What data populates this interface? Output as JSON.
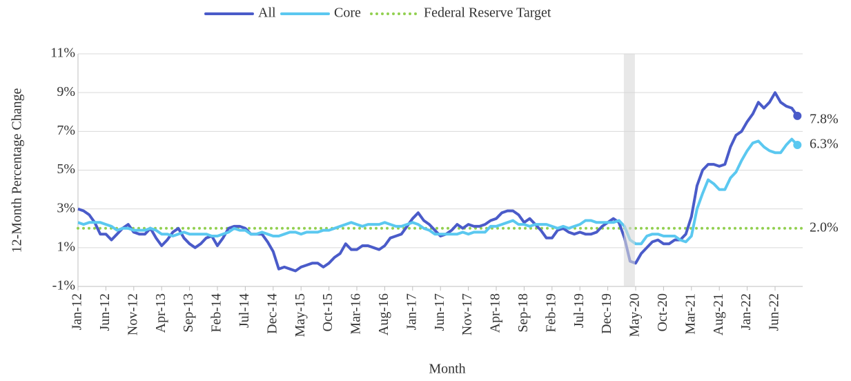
{
  "chart_data": {
    "type": "line",
    "x_label": "Month",
    "y_label": "12-Month Percentage Change",
    "categories": [
      "Jan-12",
      null,
      null,
      null,
      null,
      "Jun-12",
      null,
      null,
      null,
      null,
      "Nov-12",
      null,
      null,
      null,
      null,
      "Apr-13",
      null,
      null,
      null,
      null,
      "Sep-13",
      null,
      null,
      null,
      null,
      "Feb-14",
      null,
      null,
      null,
      null,
      "Jul-14",
      null,
      null,
      null,
      null,
      "Dec-14",
      null,
      null,
      null,
      null,
      "May-15",
      null,
      null,
      null,
      null,
      "Oct-15",
      null,
      null,
      null,
      null,
      "Mar-16",
      null,
      null,
      null,
      null,
      "Aug-16",
      null,
      null,
      null,
      null,
      "Jan-17",
      null,
      null,
      null,
      null,
      "Jun-17",
      null,
      null,
      null,
      null,
      "Nov-17",
      null,
      null,
      null,
      null,
      "Apr-18",
      null,
      null,
      null,
      null,
      "Sep-18",
      null,
      null,
      null,
      null,
      "Feb-19",
      null,
      null,
      null,
      null,
      "Jul-19",
      null,
      null,
      null,
      null,
      "Dec-19",
      null,
      null,
      null,
      null,
      "May-20",
      null,
      null,
      null,
      null,
      "Oct-20",
      null,
      null,
      null,
      null,
      "Mar-21",
      null,
      null,
      null,
      null,
      "Aug-21",
      null,
      null,
      null,
      null,
      "Jan-22",
      null,
      null,
      null,
      null,
      "Jun-22",
      null,
      null,
      null,
      null
    ],
    "series": [
      {
        "name": "All",
        "color": "#4a5bc9",
        "end_label": "7.8%",
        "values": [
          3.0,
          2.9,
          2.7,
          2.3,
          1.7,
          1.7,
          1.4,
          1.7,
          2.0,
          2.2,
          1.8,
          1.7,
          1.7,
          2.0,
          1.5,
          1.1,
          1.4,
          1.8,
          2.0,
          1.5,
          1.2,
          1.0,
          1.2,
          1.5,
          1.6,
          1.1,
          1.5,
          2.0,
          2.1,
          2.1,
          2.0,
          1.7,
          1.7,
          1.7,
          1.3,
          0.8,
          -0.1,
          0.0,
          -0.1,
          -0.2,
          0.0,
          0.1,
          0.2,
          0.2,
          0.0,
          0.2,
          0.5,
          0.7,
          1.2,
          0.9,
          0.9,
          1.1,
          1.1,
          1.0,
          0.9,
          1.1,
          1.5,
          1.6,
          1.7,
          2.1,
          2.5,
          2.8,
          2.4,
          2.2,
          1.9,
          1.6,
          1.7,
          1.9,
          2.2,
          2.0,
          2.2,
          2.1,
          2.1,
          2.2,
          2.4,
          2.5,
          2.8,
          2.9,
          2.9,
          2.7,
          2.3,
          2.5,
          2.2,
          1.9,
          1.5,
          1.5,
          1.9,
          2.0,
          1.8,
          1.7,
          1.8,
          1.7,
          1.7,
          1.8,
          2.1,
          2.3,
          2.5,
          2.3,
          1.5,
          0.3,
          0.2,
          0.7,
          1.0,
          1.3,
          1.4,
          1.2,
          1.2,
          1.4,
          1.4,
          1.7,
          2.6,
          4.2,
          5.0,
          5.3,
          5.3,
          5.2,
          5.3,
          6.2,
          6.8,
          7.0,
          7.5,
          7.9,
          8.5,
          8.2,
          8.5,
          9.0,
          8.5,
          8.3,
          8.2,
          7.8
        ]
      },
      {
        "name": "Core",
        "color": "#5bc8f0",
        "end_label": "6.3%",
        "values": [
          2.3,
          2.2,
          2.3,
          2.3,
          2.3,
          2.2,
          2.1,
          1.9,
          2.0,
          2.0,
          1.9,
          1.9,
          1.9,
          2.0,
          1.9,
          1.7,
          1.7,
          1.6,
          1.7,
          1.8,
          1.7,
          1.7,
          1.7,
          1.7,
          1.6,
          1.6,
          1.7,
          1.8,
          2.0,
          1.9,
          1.9,
          1.7,
          1.7,
          1.8,
          1.7,
          1.6,
          1.6,
          1.7,
          1.8,
          1.8,
          1.7,
          1.8,
          1.8,
          1.8,
          1.9,
          1.9,
          2.0,
          2.1,
          2.2,
          2.3,
          2.2,
          2.1,
          2.2,
          2.2,
          2.2,
          2.3,
          2.2,
          2.1,
          2.1,
          2.2,
          2.3,
          2.2,
          2.0,
          1.9,
          1.7,
          1.7,
          1.7,
          1.7,
          1.7,
          1.8,
          1.7,
          1.8,
          1.8,
          1.8,
          2.1,
          2.1,
          2.2,
          2.3,
          2.4,
          2.2,
          2.2,
          2.1,
          2.2,
          2.2,
          2.2,
          2.1,
          2.0,
          2.1,
          2.0,
          2.1,
          2.2,
          2.4,
          2.4,
          2.3,
          2.3,
          2.3,
          2.3,
          2.4,
          2.1,
          1.4,
          1.2,
          1.2,
          1.6,
          1.7,
          1.7,
          1.6,
          1.6,
          1.6,
          1.4,
          1.3,
          1.6,
          3.0,
          3.8,
          4.5,
          4.3,
          4.0,
          4.0,
          4.6,
          4.9,
          5.5,
          6.0,
          6.4,
          6.5,
          6.2,
          6.0,
          5.9,
          5.9,
          6.3,
          6.6,
          6.3
        ]
      }
    ],
    "reference_line": {
      "name": "Federal Reserve Target",
      "value": 2,
      "label": "2.0%",
      "color": "#92d050",
      "style": "dotted"
    },
    "shaded": {
      "from": 98,
      "to": 99,
      "color": "#d9d9d9"
    },
    "ylim": [
      -1,
      11
    ],
    "yticks": [
      {
        "value": -1,
        "label": "-1%"
      },
      {
        "value": 1,
        "label": "1%"
      },
      {
        "value": 3,
        "label": "3%"
      },
      {
        "value": 5,
        "label": "5%"
      },
      {
        "value": 7,
        "label": "7%"
      },
      {
        "value": 9,
        "label": "9%"
      },
      {
        "value": 11,
        "label": "11%"
      }
    ],
    "grid": true,
    "legend": "top"
  }
}
